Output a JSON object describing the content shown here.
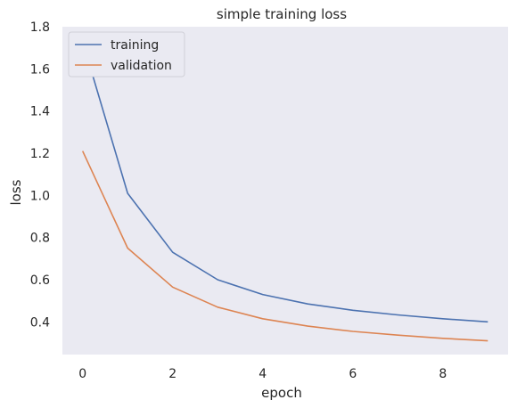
{
  "chart_data": {
    "type": "line",
    "title": "simple training loss",
    "xlabel": "epoch",
    "ylabel": "loss",
    "xlim": [
      -0.45,
      9.45
    ],
    "ylim": [
      0.245,
      1.8
    ],
    "xticks": [
      0,
      2,
      4,
      6,
      8
    ],
    "yticks": [
      0.4,
      0.6,
      0.8,
      1.0,
      1.2,
      1.4,
      1.6,
      1.8
    ],
    "xtick_labels": [
      "0",
      "2",
      "4",
      "6",
      "8"
    ],
    "ytick_labels": [
      "0.4",
      "0.6",
      "0.8",
      "1.0",
      "1.2",
      "1.4",
      "1.6",
      "1.8"
    ],
    "grid": false,
    "legend_position": "top-left",
    "background": "#eaeaf2",
    "x": [
      0,
      1,
      2,
      3,
      4,
      5,
      6,
      7,
      8,
      9
    ],
    "series": [
      {
        "name": "training",
        "color": "#4c72b0",
        "values": [
          1.73,
          1.01,
          0.73,
          0.6,
          0.53,
          0.485,
          0.455,
          0.433,
          0.415,
          0.4
        ]
      },
      {
        "name": "validation",
        "color": "#dd8452",
        "values": [
          1.21,
          0.75,
          0.565,
          0.47,
          0.415,
          0.38,
          0.355,
          0.337,
          0.322,
          0.31
        ]
      }
    ]
  }
}
